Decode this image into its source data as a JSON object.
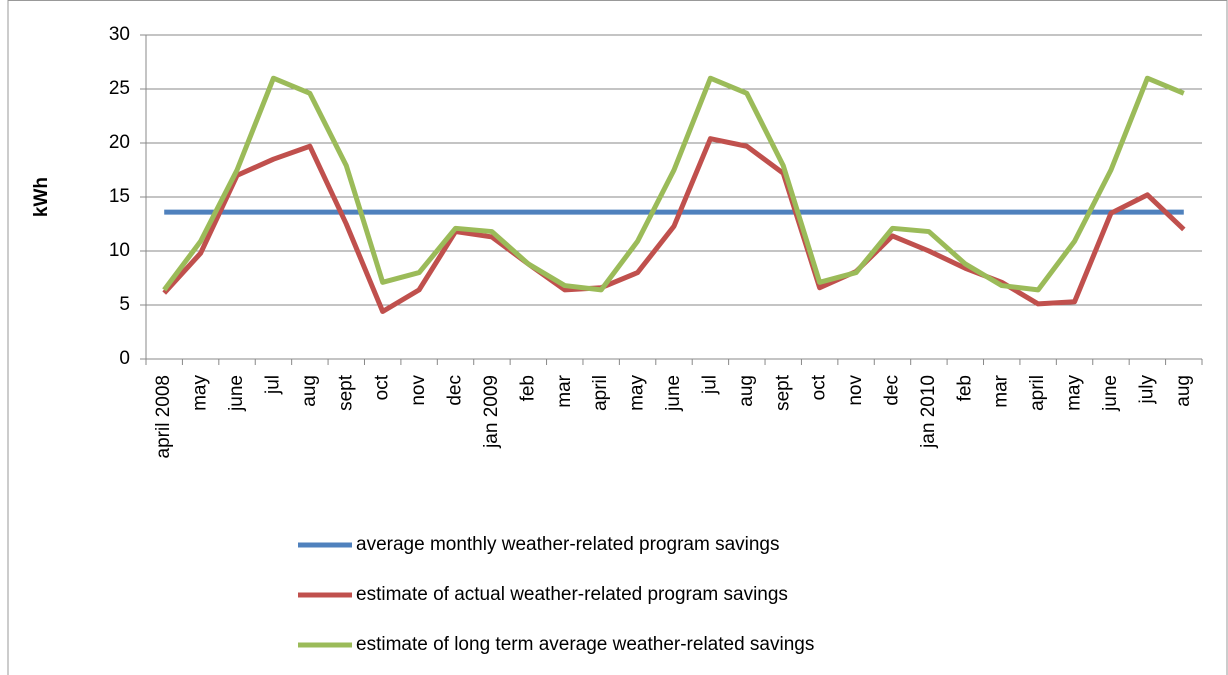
{
  "chart_data": {
    "type": "line",
    "ylabel": "kWh",
    "categories": [
      "april 2008",
      "may",
      "june",
      "jul",
      "aug",
      "sept",
      "oct",
      "nov",
      "dec",
      "jan 2009",
      "feb",
      "mar",
      "april",
      "may",
      "june",
      "jul",
      "aug",
      "sept",
      "oct",
      "nov",
      "dec",
      "jan 2010",
      "feb",
      "mar",
      "april",
      "may",
      "june",
      "july",
      "aug"
    ],
    "series": [
      {
        "name": "average monthly weather-related program savings",
        "color": "#4f81bd",
        "values": [
          13.6,
          13.6,
          13.6,
          13.6,
          13.6,
          13.6,
          13.6,
          13.6,
          13.6,
          13.6,
          13.6,
          13.6,
          13.6,
          13.6,
          13.6,
          13.6,
          13.6,
          13.6,
          13.6,
          13.6,
          13.6,
          13.6,
          13.6,
          13.6,
          13.6,
          13.6,
          13.6,
          13.6,
          13.6
        ]
      },
      {
        "name": "estimate of actual weather-related program savings",
        "color": "#c0504d",
        "values": [
          6.1,
          9.8,
          17,
          18.5,
          19.7,
          12.5,
          4.4,
          6.4,
          11.8,
          11.3,
          8.8,
          6.4,
          6.6,
          8.0,
          12.3,
          20.4,
          19.7,
          17.2,
          6.6,
          8.1,
          11.4,
          10.0,
          8.4,
          7.1,
          5.1,
          5.3,
          13.5,
          15.2,
          12.0
        ]
      },
      {
        "name": "estimate of long term average weather-related savings",
        "color": "#9bbb59",
        "values": [
          6.4,
          10.9,
          17.5,
          26,
          24.6,
          17.9,
          7.1,
          8.0,
          12.1,
          11.8,
          8.8,
          6.8,
          6.4,
          10.9,
          17.5,
          26,
          24.6,
          17.9,
          7.1,
          8.0,
          12.1,
          11.8,
          8.8,
          6.8,
          6.4,
          10.9,
          17.5,
          26,
          24.6
        ]
      }
    ],
    "ylim": [
      0,
      30
    ],
    "yticks": [
      0,
      5,
      10,
      15,
      20,
      25,
      30
    ],
    "grid": true,
    "legend": "bottom"
  }
}
